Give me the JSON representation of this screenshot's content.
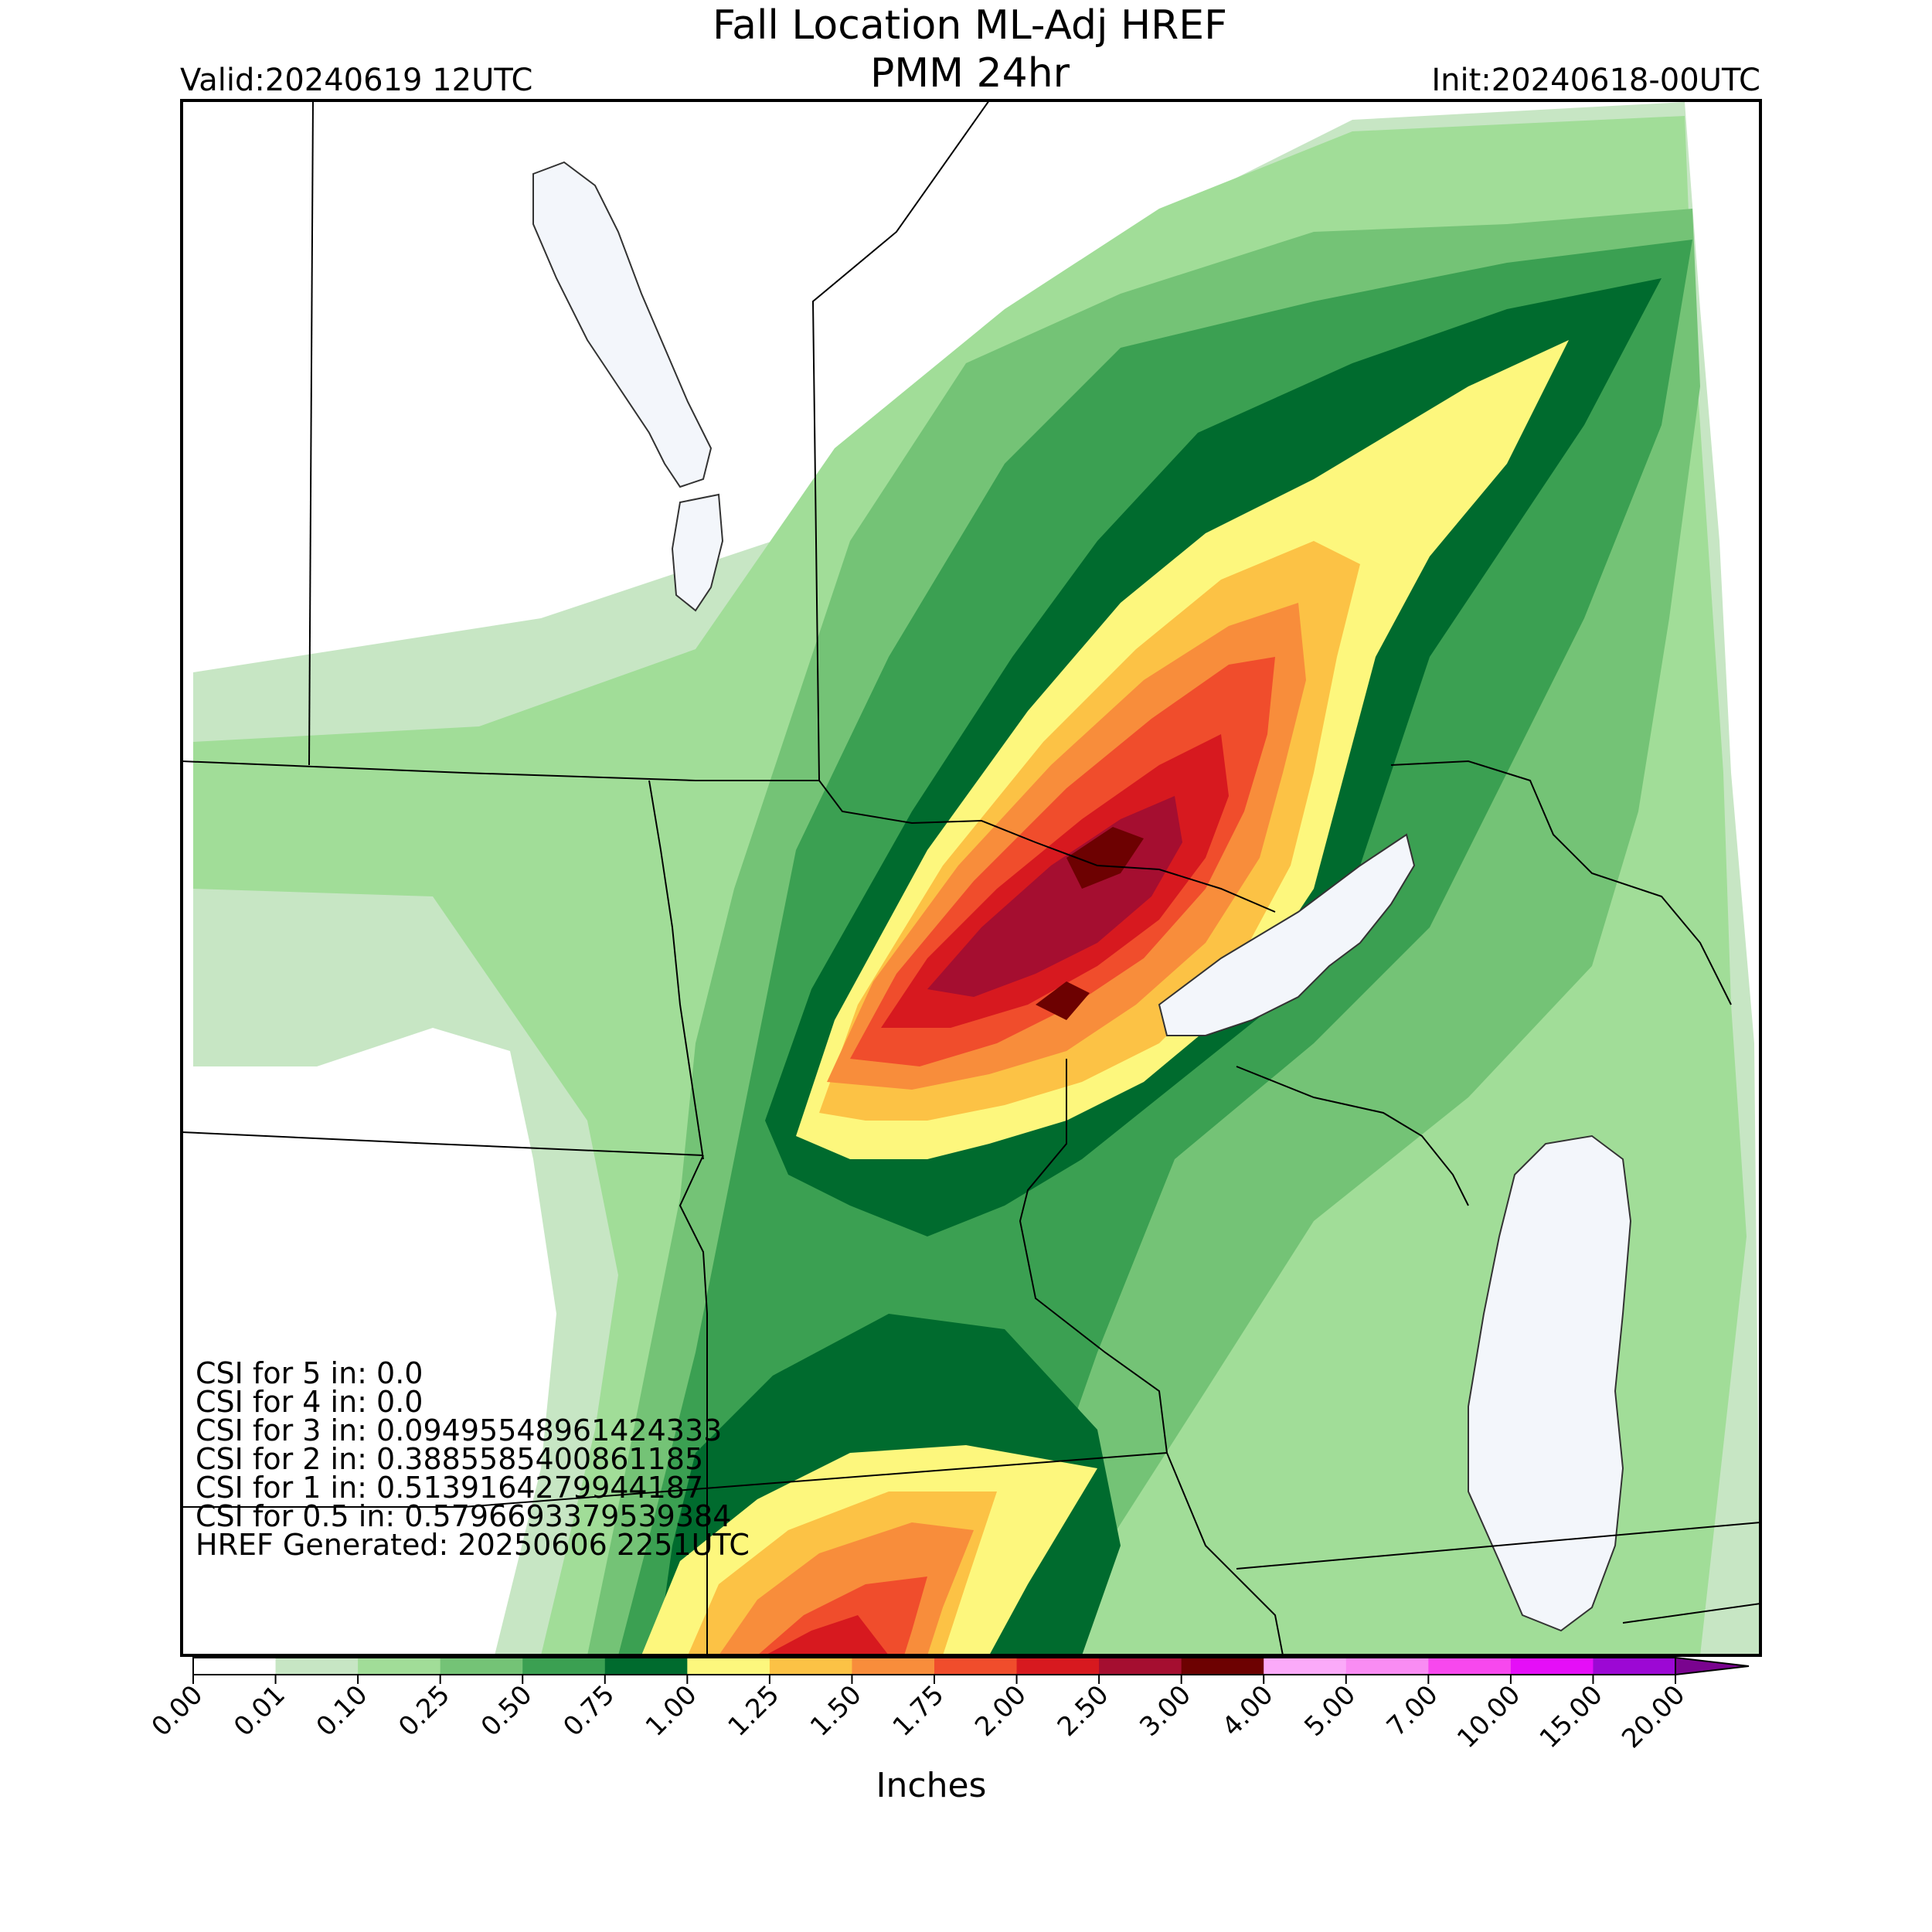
{
  "title_line1": "Fall Location ML-Adj HREF",
  "title_line2": "PMM 24hr",
  "valid": "Valid:20240619 12UTC",
  "init": "Init:20240618-00UTC",
  "csi_lines": [
    "CSI for 5 in: 0.0",
    "CSI for 4 in: 0.0",
    "CSI for 3 in: 0.09495548961424333",
    "CSI for 2 in: 0.3885585400861185",
    "CSI for 1 in: 0.5139164279944187",
    "CSI for 0.5 in: 0.5796693379539384",
    "HREF Generated: 20250606 2251UTC"
  ],
  "colorbar": {
    "label": "Inches",
    "ticks": [
      "0.00",
      "0.01",
      "0.10",
      "0.25",
      "0.50",
      "0.75",
      "1.00",
      "1.25",
      "1.50",
      "1.75",
      "2.00",
      "2.50",
      "3.00",
      "4.00",
      "5.00",
      "7.00",
      "10.00",
      "15.00",
      "20.00"
    ],
    "colors": [
      "#ffffff",
      "#c7e6c4",
      "#a1dd98",
      "#74c376",
      "#3ba052",
      "#006b2e",
      "#fdf77d",
      "#fcc245",
      "#f88d3b",
      "#f04d2c",
      "#d7191f",
      "#a50e30",
      "#6d0101",
      "#fbaaf9",
      "#f98cf3",
      "#f748ee",
      "#e50ef7",
      "#9c08d4"
    ],
    "extend_color": "#7a048f"
  },
  "precip_regions": [
    {
      "level": "0.01",
      "color": "#c7e6c4"
    },
    {
      "level": "0.10",
      "color": "#a1dd98"
    },
    {
      "level": "0.25",
      "color": "#74c376"
    },
    {
      "level": "0.50",
      "color": "#3ba052"
    },
    {
      "level": "0.75",
      "color": "#006b2e"
    },
    {
      "level": "1.00",
      "color": "#fdf77d"
    },
    {
      "level": "1.25",
      "color": "#fcc245"
    },
    {
      "level": "1.50",
      "color": "#f88d3b"
    },
    {
      "level": "1.75",
      "color": "#f04d2c"
    },
    {
      "level": "2.00",
      "color": "#d7191f"
    },
    {
      "level": "2.50",
      "color": "#a50e30"
    },
    {
      "level": "3.00",
      "color": "#6d0101"
    }
  ],
  "lake_color": "#f3f6fb"
}
